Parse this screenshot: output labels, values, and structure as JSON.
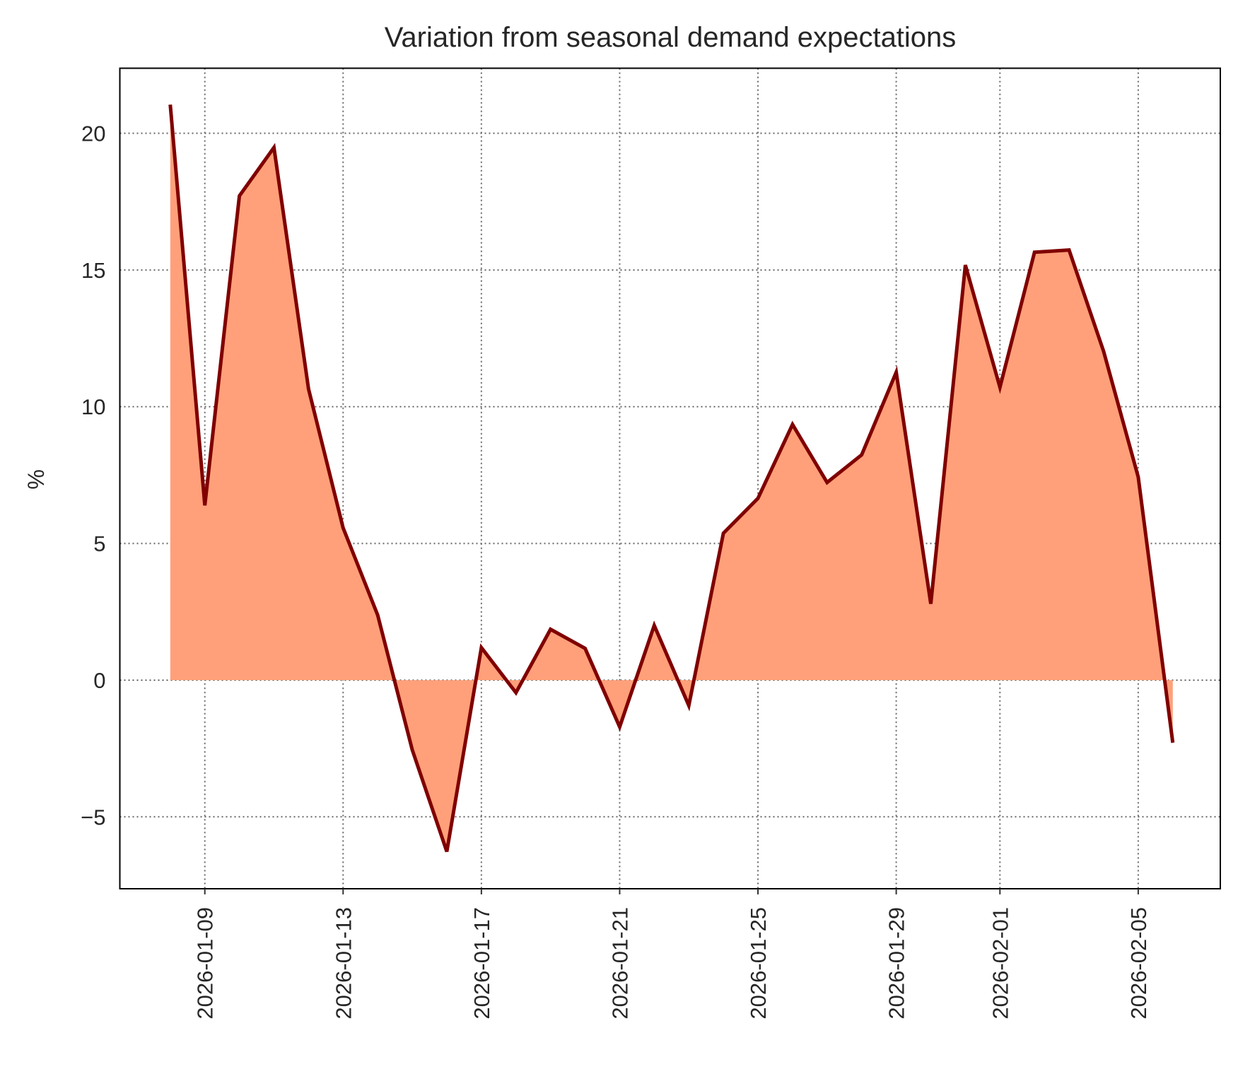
{
  "chart_data": {
    "type": "area",
    "title": "Variation from seasonal demand expectations",
    "xlabel": "",
    "ylabel": "%",
    "x": [
      "2026-01-08",
      "2026-01-09",
      "2026-01-10",
      "2026-01-11",
      "2026-01-12",
      "2026-01-13",
      "2026-01-14",
      "2026-01-15",
      "2026-01-16",
      "2026-01-17",
      "2026-01-18",
      "2026-01-19",
      "2026-01-20",
      "2026-01-21",
      "2026-01-22",
      "2026-01-23",
      "2026-01-24",
      "2026-01-25",
      "2026-01-26",
      "2026-01-27",
      "2026-01-28",
      "2026-01-29",
      "2026-01-30",
      "2026-01-31",
      "2026-02-01",
      "2026-02-02",
      "2026-02-03",
      "2026-02-04",
      "2026-02-05",
      "2026-02-06"
    ],
    "values": [
      21.05,
      6.39,
      17.71,
      19.48,
      10.65,
      5.57,
      2.38,
      -2.55,
      -6.27,
      1.19,
      -0.46,
      1.86,
      1.16,
      -1.71,
      2.0,
      -0.93,
      5.37,
      6.65,
      9.35,
      7.23,
      8.24,
      11.26,
      2.79,
      15.18,
      10.71,
      15.65,
      15.73,
      12.02,
      7.43,
      -2.29
    ],
    "xticks": [
      "2026-01-09",
      "2026-01-13",
      "2026-01-17",
      "2026-01-21",
      "2026-01-25",
      "2026-01-29",
      "2026-02-01",
      "2026-02-05"
    ],
    "yticks": [
      -5,
      0,
      5,
      10,
      15,
      20
    ],
    "ytick_labels": [
      "−5",
      "0",
      "5",
      "10",
      "15",
      "20"
    ],
    "ylim": [
      -7.63,
      22.38
    ],
    "xlim": [
      "2026-01-06T13:00",
      "2026-02-07T09:00"
    ],
    "grid": true,
    "colors": {
      "line": "#800000",
      "fill": "#FFA07A",
      "grid": "#666666"
    }
  }
}
